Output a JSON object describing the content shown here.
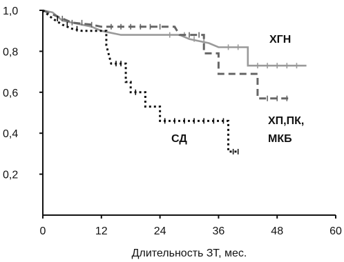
{
  "chart_data": {
    "type": "line",
    "title": "",
    "xlabel": "Длительность ЗТ, мес.",
    "ylabel": "",
    "xlim": [
      0,
      60
    ],
    "ylim": [
      0,
      1.0
    ],
    "x_ticks": [
      "0",
      "12",
      "24",
      "36",
      "48",
      "60"
    ],
    "y_ticks": [
      "0,2",
      "0,4",
      "0,6",
      "0,8",
      "1,0"
    ],
    "grid": false,
    "legend": "none",
    "series": [
      {
        "name": "ХГН",
        "style": "solid",
        "color": "#9a9a9a",
        "points": [
          [
            0,
            1.0
          ],
          [
            2,
            0.99
          ],
          [
            3,
            0.97
          ],
          [
            4,
            0.95
          ],
          [
            6,
            0.94
          ],
          [
            8,
            0.93
          ],
          [
            10,
            0.92
          ],
          [
            12,
            0.9
          ],
          [
            14,
            0.89
          ],
          [
            16,
            0.88
          ],
          [
            28,
            0.88
          ],
          [
            30,
            0.86
          ],
          [
            34,
            0.84
          ],
          [
            36,
            0.82
          ],
          [
            42,
            0.82
          ],
          [
            42,
            0.73
          ],
          [
            54,
            0.73
          ]
        ],
        "censored_x": [
          26,
          29,
          31,
          33,
          38,
          40,
          44,
          46,
          48,
          50,
          52
        ]
      },
      {
        "name": "ХП,ПК,МКБ",
        "style": "dashed",
        "color": "#666666",
        "points": [
          [
            0,
            1.0
          ],
          [
            2,
            0.98
          ],
          [
            4,
            0.96
          ],
          [
            6,
            0.94
          ],
          [
            10,
            0.93
          ],
          [
            12,
            0.92
          ],
          [
            27,
            0.92
          ],
          [
            28,
            0.88
          ],
          [
            33,
            0.88
          ],
          [
            33,
            0.79
          ],
          [
            36,
            0.79
          ],
          [
            36,
            0.69
          ],
          [
            44,
            0.69
          ],
          [
            44,
            0.57
          ],
          [
            51,
            0.57
          ]
        ],
        "censored_x": [
          4,
          6,
          8,
          10,
          14,
          16,
          18,
          20,
          22,
          24,
          30,
          32,
          46,
          48,
          50
        ]
      },
      {
        "name": "СД",
        "style": "dotted",
        "color": "#111111",
        "points": [
          [
            0,
            1.0
          ],
          [
            2,
            0.96
          ],
          [
            4,
            0.93
          ],
          [
            6,
            0.91
          ],
          [
            8,
            0.9
          ],
          [
            13,
            0.9
          ],
          [
            13,
            0.83
          ],
          [
            14,
            0.74
          ],
          [
            17,
            0.74
          ],
          [
            17,
            0.65
          ],
          [
            18,
            0.65
          ],
          [
            18,
            0.6
          ],
          [
            21,
            0.6
          ],
          [
            21,
            0.53
          ],
          [
            24,
            0.53
          ],
          [
            24,
            0.46
          ],
          [
            38,
            0.46
          ],
          [
            38,
            0.31
          ],
          [
            40,
            0.31
          ]
        ],
        "censored_x": [
          3,
          5,
          7,
          15,
          16,
          19,
          25,
          27,
          29,
          31,
          33,
          35,
          37,
          39,
          40
        ]
      }
    ],
    "annotations": [
      "ХГН",
      "ХП,ПК,",
      "МКБ",
      "СД"
    ]
  }
}
